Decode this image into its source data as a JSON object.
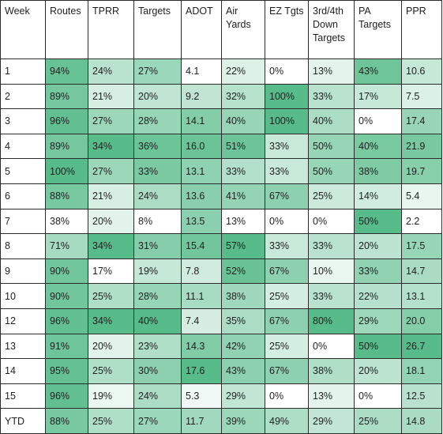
{
  "table": {
    "columns": [
      "Week",
      "Routes",
      "TPRR",
      "Targets",
      "ADOT",
      "Air Yards",
      "EZ Tgts",
      "3rd/4th Down Targets",
      "PA Targets",
      "PPR"
    ],
    "rows": [
      {
        "week": "1",
        "values": [
          "94%",
          "24%",
          "27%",
          "4.1",
          "22%",
          "0%",
          "13%",
          "43%",
          "10.6"
        ]
      },
      {
        "week": "2",
        "values": [
          "89%",
          "21%",
          "20%",
          "9.2",
          "32%",
          "100%",
          "33%",
          "17%",
          "7.5"
        ]
      },
      {
        "week": "3",
        "values": [
          "96%",
          "27%",
          "28%",
          "14.1",
          "40%",
          "100%",
          "40%",
          "0%",
          "17.4"
        ]
      },
      {
        "week": "4",
        "values": [
          "89%",
          "34%",
          "36%",
          "16.0",
          "51%",
          "33%",
          "50%",
          "40%",
          "21.9"
        ]
      },
      {
        "week": "5",
        "values": [
          "100%",
          "27%",
          "33%",
          "13.1",
          "33%",
          "33%",
          "50%",
          "38%",
          "19.7"
        ]
      },
      {
        "week": "6",
        "values": [
          "88%",
          "21%",
          "24%",
          "13.6",
          "41%",
          "67%",
          "25%",
          "14%",
          "5.4"
        ]
      },
      {
        "week": "7",
        "values": [
          "38%",
          "20%",
          "8%",
          "13.5",
          "13%",
          "0%",
          "0%",
          "50%",
          "2.2"
        ]
      },
      {
        "week": "8",
        "values": [
          "71%",
          "34%",
          "31%",
          "15.4",
          "57%",
          "33%",
          "33%",
          "20%",
          "17.5"
        ]
      },
      {
        "week": "9",
        "values": [
          "90%",
          "17%",
          "19%",
          "7.8",
          "52%",
          "67%",
          "10%",
          "33%",
          "14.7"
        ]
      },
      {
        "week": "10",
        "values": [
          "90%",
          "25%",
          "28%",
          "11.1",
          "38%",
          "25%",
          "33%",
          "22%",
          "13.1"
        ]
      },
      {
        "week": "12",
        "values": [
          "96%",
          "34%",
          "40%",
          "7.4",
          "35%",
          "67%",
          "80%",
          "29%",
          "20.0"
        ]
      },
      {
        "week": "13",
        "values": [
          "91%",
          "20%",
          "23%",
          "14.3",
          "42%",
          "25%",
          "0%",
          "50%",
          "26.7"
        ]
      },
      {
        "week": "14",
        "values": [
          "95%",
          "25%",
          "30%",
          "17.6",
          "43%",
          "67%",
          "38%",
          "20%",
          "18.1"
        ]
      },
      {
        "week": "15",
        "values": [
          "96%",
          "19%",
          "24%",
          "5.3",
          "29%",
          "0%",
          "13%",
          "0%",
          "12.5"
        ]
      },
      {
        "week": "YTD",
        "values": [
          "88%",
          "25%",
          "27%",
          "11.7",
          "39%",
          "49%",
          "29%",
          "25%",
          "14.8"
        ]
      }
    ]
  },
  "colors": {
    "low": "#ffffff",
    "high": "#57bb8a",
    "border": "#2b2b2b",
    "text": "#1f1f1f"
  }
}
